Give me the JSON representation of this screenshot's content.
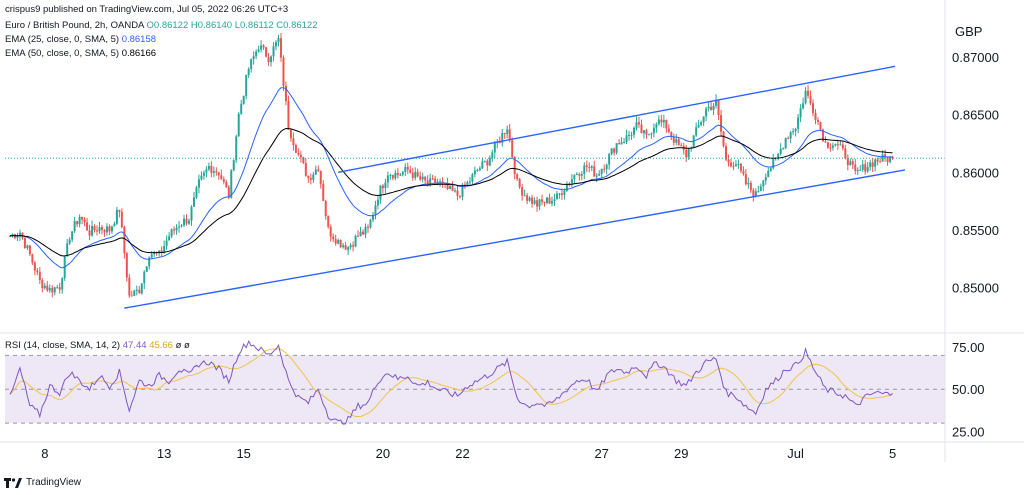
{
  "header": {
    "credit": "crispus9 published on TradingView.com, Jul 05, 2022 06:26 UTC+3"
  },
  "legend": {
    "symbol": "Euro / British Pound, 2h, OANDA",
    "ohlc": "O0.86122 H0.86140 L0.86112 C0.86122",
    "ema25_label": "EMA (25, close, 0, SMA, 5)",
    "ema25_value": "0.86158",
    "ema50_label": "EMA (50, close, 0, SMA, 5)",
    "ema50_value": "0.86166",
    "rsi_label": "RSI (14, close, SMA, 14, 2)",
    "rsi_value": "47.44",
    "rsi_sma_value": "45.66",
    "rsi_extra": "ø ø"
  },
  "branding": {
    "name": "TradingView"
  },
  "colors": {
    "up": "#26a69a",
    "down": "#ef5350",
    "ema25": "#2962ff",
    "ema50": "#000000",
    "channel": "#2962ff",
    "rsi": "#7e57c2",
    "rsi_ma": "#f0c44c",
    "rsi_band": "#ede7f6"
  },
  "chart_data": [
    {
      "type": "candlestick",
      "currency": "GBP",
      "y_ticks": [
        "0.87000",
        "0.86500",
        "0.86000",
        "0.85500",
        "0.85000"
      ],
      "ylim": [
        0.8463,
        0.8734
      ],
      "x_ticks": [
        "8",
        "13",
        "15",
        "20",
        "22",
        "27",
        "29",
        "Jul",
        "5"
      ],
      "last_price": 0.86122,
      "close_path": [
        [
          0,
          0.8545
        ],
        [
          4,
          0.8548
        ],
        [
          8,
          0.8528
        ],
        [
          12,
          0.8505
        ],
        [
          16,
          0.8498
        ],
        [
          20,
          0.8501
        ],
        [
          24,
          0.8545
        ],
        [
          28,
          0.8562
        ],
        [
          32,
          0.8548
        ],
        [
          36,
          0.8552
        ],
        [
          40,
          0.855
        ],
        [
          44,
          0.8568
        ],
        [
          48,
          0.8492
        ],
        [
          52,
          0.8498
        ],
        [
          56,
          0.853
        ],
        [
          60,
          0.8528
        ],
        [
          64,
          0.8545
        ],
        [
          68,
          0.8555
        ],
        [
          72,
          0.856
        ],
        [
          76,
          0.859
        ],
        [
          80,
          0.8605
        ],
        [
          84,
          0.86
        ],
        [
          88,
          0.858
        ],
        [
          92,
          0.865
        ],
        [
          96,
          0.869
        ],
        [
          100,
          0.871
        ],
        [
          104,
          0.87
        ],
        [
          108,
          0.8715
        ],
        [
          112,
          0.864
        ],
        [
          116,
          0.8615
        ],
        [
          120,
          0.8595
        ],
        [
          124,
          0.8605
        ],
        [
          128,
          0.855
        ],
        [
          132,
          0.854
        ],
        [
          136,
          0.8535
        ],
        [
          140,
          0.8545
        ],
        [
          144,
          0.855
        ],
        [
          148,
          0.858
        ],
        [
          152,
          0.86
        ],
        [
          156,
          0.8598
        ],
        [
          160,
          0.8602
        ],
        [
          164,
          0.8595
        ],
        [
          168,
          0.859
        ],
        [
          172,
          0.8592
        ],
        [
          176,
          0.8585
        ],
        [
          180,
          0.858
        ],
        [
          184,
          0.859
        ],
        [
          188,
          0.8602
        ],
        [
          192,
          0.861
        ],
        [
          196,
          0.8625
        ],
        [
          200,
          0.864
        ],
        [
          204,
          0.859
        ],
        [
          208,
          0.8578
        ],
        [
          212,
          0.8572
        ],
        [
          216,
          0.8575
        ],
        [
          220,
          0.8578
        ],
        [
          224,
          0.859
        ],
        [
          228,
          0.86
        ],
        [
          232,
          0.8605
        ],
        [
          236,
          0.8598
        ],
        [
          240,
          0.861
        ],
        [
          244,
          0.8625
        ],
        [
          248,
          0.863
        ],
        [
          252,
          0.864
        ],
        [
          256,
          0.863
        ],
        [
          260,
          0.8645
        ],
        [
          264,
          0.864
        ],
        [
          268,
          0.8625
        ],
        [
          272,
          0.8615
        ],
        [
          276,
          0.8635
        ],
        [
          280,
          0.8655
        ],
        [
          284,
          0.866
        ],
        [
          288,
          0.861
        ],
        [
          292,
          0.8608
        ],
        [
          296,
          0.859
        ],
        [
          300,
          0.858
        ],
        [
          304,
          0.86
        ],
        [
          308,
          0.861
        ],
        [
          312,
          0.863
        ],
        [
          316,
          0.864
        ],
        [
          320,
          0.867
        ],
        [
          324,
          0.865
        ],
        [
          328,
          0.8625
        ],
        [
          332,
          0.8625
        ],
        [
          336,
          0.8615
        ],
        [
          340,
          0.8598
        ],
        [
          344,
          0.8605
        ],
        [
          348,
          0.861
        ],
        [
          352,
          0.8612
        ],
        [
          355,
          0.8612
        ]
      ],
      "channel": {
        "upper": [
          [
            48,
            0.848
          ],
          [
            0,
            0
          ],
          [
            0,
            0
          ]
        ],
        "lines": [
          {
            "name": "upper",
            "from": [
              132,
              0.86
            ],
            "to": [
              356,
              0.8692
            ]
          },
          {
            "name": "lower",
            "from": [
              46,
              0.8482
            ],
            "to": [
              360,
              0.8602
            ]
          }
        ]
      }
    },
    {
      "type": "line",
      "name": "RSI",
      "y_ticks": [
        "75.00",
        "50.00",
        "25.00"
      ],
      "ylim": [
        20,
        82
      ],
      "band": [
        30,
        70
      ],
      "x_ticks": [
        "8",
        "13",
        "15",
        "20",
        "22",
        "27",
        "29",
        "Jul",
        "5"
      ],
      "rsi_path": [
        [
          0,
          45
        ],
        [
          4,
          62
        ],
        [
          8,
          40
        ],
        [
          12,
          35
        ],
        [
          16,
          52
        ],
        [
          20,
          48
        ],
        [
          24,
          60
        ],
        [
          28,
          55
        ],
        [
          32,
          50
        ],
        [
          36,
          58
        ],
        [
          40,
          52
        ],
        [
          44,
          60
        ],
        [
          48,
          38
        ],
        [
          52,
          55
        ],
        [
          56,
          52
        ],
        [
          60,
          58
        ],
        [
          64,
          55
        ],
        [
          68,
          62
        ],
        [
          72,
          58
        ],
        [
          76,
          65
        ],
        [
          80,
          66
        ],
        [
          84,
          62
        ],
        [
          88,
          55
        ],
        [
          92,
          72
        ],
        [
          96,
          78
        ],
        [
          100,
          74
        ],
        [
          104,
          70
        ],
        [
          108,
          76
        ],
        [
          112,
          55
        ],
        [
          116,
          45
        ],
        [
          120,
          42
        ],
        [
          124,
          50
        ],
        [
          128,
          35
        ],
        [
          132,
          30
        ],
        [
          136,
          32
        ],
        [
          140,
          40
        ],
        [
          144,
          42
        ],
        [
          148,
          55
        ],
        [
          152,
          60
        ],
        [
          156,
          56
        ],
        [
          160,
          58
        ],
        [
          164,
          52
        ],
        [
          168,
          54
        ],
        [
          172,
          50
        ],
        [
          176,
          48
        ],
        [
          180,
          46
        ],
        [
          184,
          52
        ],
        [
          188,
          55
        ],
        [
          192,
          58
        ],
        [
          196,
          62
        ],
        [
          200,
          66
        ],
        [
          204,
          45
        ],
        [
          208,
          40
        ],
        [
          212,
          42
        ],
        [
          216,
          40
        ],
        [
          220,
          44
        ],
        [
          224,
          50
        ],
        [
          228,
          55
        ],
        [
          232,
          56
        ],
        [
          236,
          48
        ],
        [
          240,
          58
        ],
        [
          244,
          62
        ],
        [
          248,
          60
        ],
        [
          252,
          64
        ],
        [
          256,
          58
        ],
        [
          260,
          66
        ],
        [
          264,
          62
        ],
        [
          268,
          55
        ],
        [
          272,
          52
        ],
        [
          276,
          60
        ],
        [
          280,
          66
        ],
        [
          284,
          68
        ],
        [
          288,
          48
        ],
        [
          292,
          46
        ],
        [
          296,
          40
        ],
        [
          300,
          36
        ],
        [
          304,
          50
        ],
        [
          308,
          55
        ],
        [
          312,
          62
        ],
        [
          316,
          64
        ],
        [
          320,
          72
        ],
        [
          324,
          60
        ],
        [
          328,
          50
        ],
        [
          332,
          48
        ],
        [
          336,
          46
        ],
        [
          340,
          40
        ],
        [
          344,
          45
        ],
        [
          348,
          48
        ],
        [
          352,
          47
        ],
        [
          355,
          47.44
        ]
      ]
    }
  ]
}
